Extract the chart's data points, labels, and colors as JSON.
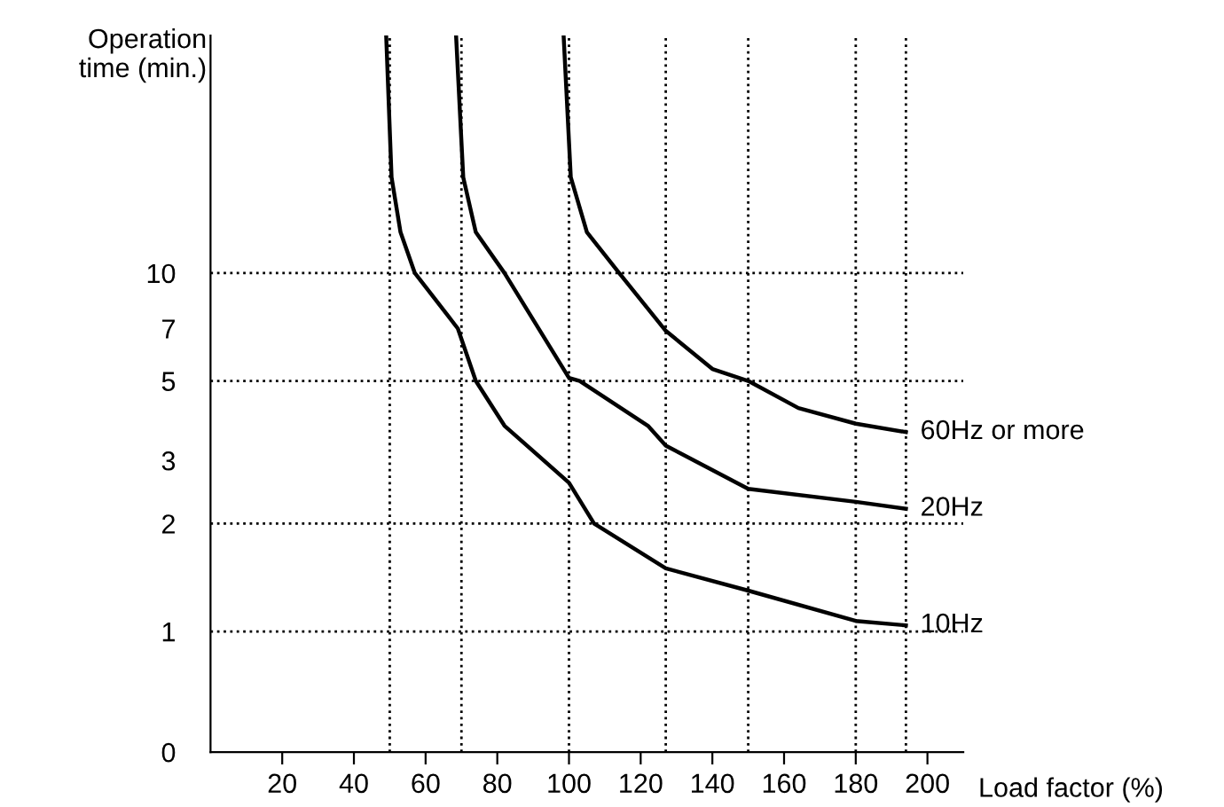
{
  "chart_data": {
    "type": "line",
    "xlabel": "Load factor (%)",
    "ylabel": "Operation\ntime (min.)",
    "log": "y",
    "xlim": [
      0,
      210
    ],
    "xticks": [
      20,
      40,
      60,
      80,
      100,
      120,
      140,
      160,
      180,
      200
    ],
    "ylim": [
      0,
      46
    ],
    "yticks": [
      0,
      1,
      2,
      3,
      5,
      7,
      10
    ],
    "grid": false,
    "legend": false,
    "marker": "none",
    "line_style": "solid",
    "series": [
      {
        "name": "60Hz or more",
        "color": "#000000",
        "x": [
          98.5,
          100.5,
          105,
          114,
          127,
          140,
          150,
          164,
          180,
          194
        ],
        "values": [
          46,
          18.5,
          13,
          10,
          6.9,
          5.4,
          5.0,
          4.2,
          3.8,
          3.6
        ]
      },
      {
        "name": "20Hz",
        "color": "#000000",
        "x": [
          68.5,
          70.5,
          74,
          82,
          100,
          103,
          122,
          127,
          150,
          180,
          194
        ],
        "values": [
          46,
          18.5,
          13,
          10,
          5.1,
          5.0,
          3.75,
          3.3,
          2.5,
          2.3,
          2.2
        ]
      },
      {
        "name": "10Hz",
        "color": "#000000",
        "x": [
          49,
          50.5,
          53,
          57,
          69,
          74,
          82,
          100,
          107,
          127,
          150,
          180,
          194
        ],
        "values": [
          46,
          18.5,
          13,
          10,
          7,
          5,
          3.75,
          2.6,
          2,
          1.5,
          1.3,
          1.07,
          1.04
        ]
      }
    ],
    "ref_lines": [
      {
        "axis": "y",
        "value": 10,
        "line_style": "dotted",
        "color": "#000000"
      },
      {
        "axis": "y",
        "value": 5,
        "line_style": "dotted",
        "color": "#000000"
      },
      {
        "axis": "y",
        "value": 2,
        "line_style": "dotted",
        "color": "#000000"
      },
      {
        "axis": "y",
        "value": 1,
        "line_style": "dotted",
        "color": "#000000"
      },
      {
        "axis": "x",
        "value": 50,
        "line_style": "dotted",
        "color": "#000000"
      },
      {
        "axis": "x",
        "value": 70,
        "line_style": "dotted",
        "color": "#000000"
      },
      {
        "axis": "x",
        "value": 100,
        "line_style": "dotted",
        "color": "#000000"
      },
      {
        "axis": "x",
        "value": 127,
        "line_style": "dotted",
        "color": "#000000"
      },
      {
        "axis": "x",
        "value": 150,
        "line_style": "dotted",
        "color": "#000000"
      },
      {
        "axis": "x",
        "value": 180,
        "line_style": "dotted",
        "color": "#000000"
      },
      {
        "axis": "x",
        "value": 194,
        "line_style": "dotted",
        "color": "#000000"
      }
    ]
  }
}
